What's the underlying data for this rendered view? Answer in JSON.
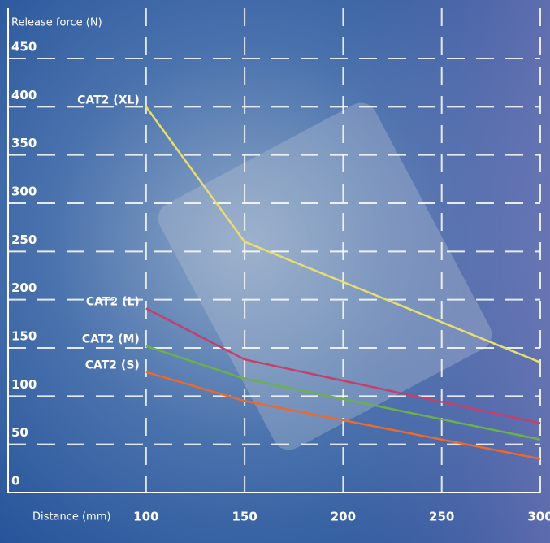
{
  "chart_data": {
    "type": "line",
    "y_label": "Release force (N)",
    "x_label": "Distance (mm)",
    "x": [
      100,
      150,
      300
    ],
    "series": [
      {
        "name": "CAT2 (XL)",
        "color": "#e6de6e",
        "values": [
          400,
          260,
          135
        ]
      },
      {
        "name": "CAT2 (L)",
        "color": "#c4406c",
        "values": [
          191,
          138,
          72
        ]
      },
      {
        "name": "CAT2 (M)",
        "color": "#6cb04c",
        "values": [
          152,
          118,
          55
        ]
      },
      {
        "name": "CAT2 (S)",
        "color": "#ea6a2e",
        "values": [
          125,
          95,
          35
        ]
      }
    ],
    "xlim": [
      30,
      300
    ],
    "xticks": [
      100,
      150,
      200,
      250,
      300
    ],
    "ylim": [
      0,
      450
    ],
    "yticks": [
      0,
      50,
      100,
      150,
      200,
      250,
      300,
      350,
      400,
      450
    ],
    "grid": true
  }
}
